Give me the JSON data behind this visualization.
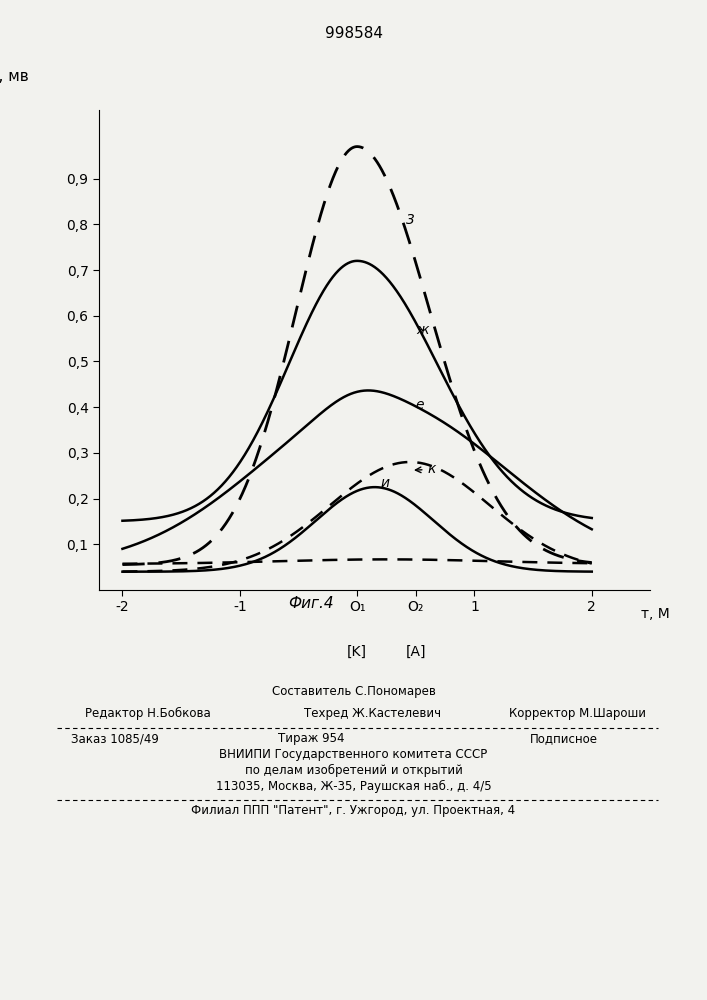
{
  "title": "998584",
  "ylabel": "Δφ, мв",
  "xlabel": "т, М",
  "xlim": [
    -2.2,
    2.5
  ],
  "ylim": [
    0,
    1.05
  ],
  "xticks": [
    -2,
    -1,
    0,
    0.5,
    1,
    2
  ],
  "xticklabels": [
    "-2",
    "-1",
    "O₁",
    "O₂",
    "1",
    "2"
  ],
  "yticks": [
    0.1,
    0.2,
    0.3,
    0.4,
    0.5,
    0.6,
    0.7,
    0.8,
    0.9
  ],
  "yticklabels": [
    "0,1",
    "0,2",
    "0,3",
    "0,4",
    "0,5",
    "0,6",
    "0,7",
    "0,8",
    "0,9"
  ],
  "x_label_k": "[K]",
  "x_label_a": "[A]",
  "figcaption": "Фиг.4",
  "footer_line1": "Составитель С.Пономарев",
  "footer_editor": "Редактор Н.Бобкова",
  "footer_tech": "Техред Ж.Кастелевич",
  "footer_corr": "Корректор М.Шароши",
  "footer_order": "Заказ 1085/49",
  "footer_tirazh": "Тираж 954",
  "footer_podp": "Подписное",
  "footer_line4": "ВНИИПИ Государственного комитета СССР",
  "footer_line5": "по делам изобретений и открытий",
  "footer_line6": "113035, Москва, Ж-35, Раушская наб., д. 4/5",
  "footer_line7": "Филиал ППП \"Патент\", г. Ужгород, ул. Проектная, 4",
  "background_color": "#f2f2ee"
}
